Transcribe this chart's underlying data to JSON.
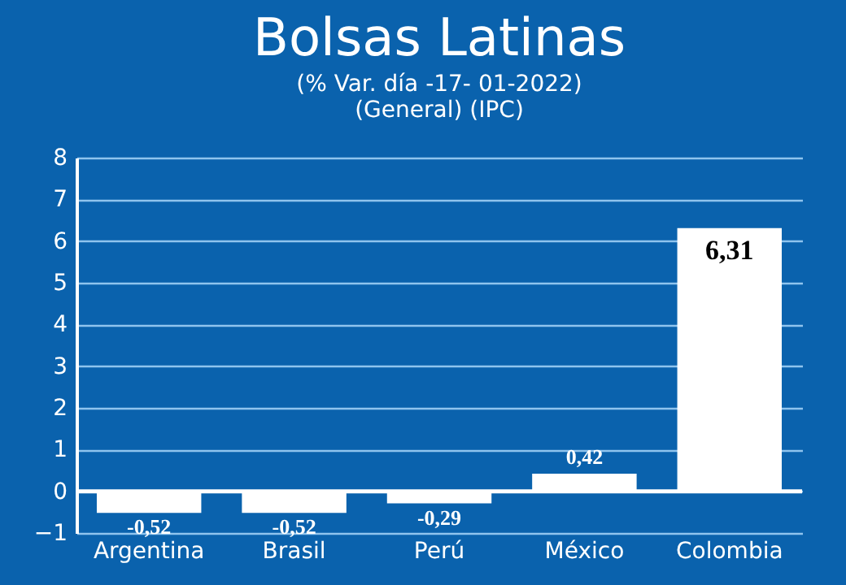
{
  "chart_data": {
    "type": "bar",
    "title": "Bolsas Latinas",
    "subtitle": "(% Var. día -17- 01-2022)",
    "categories": [
      "Argentina",
      "Brasil",
      "Perú",
      "México",
      "Colombia"
    ],
    "values": [
      -0.52,
      -0.52,
      -0.29,
      0.42,
      6.31
    ],
    "value_labels": [
      "-0,52",
      "-0,52",
      "-0,29",
      "0,42",
      "6,31"
    ],
    "color": "#ffffff",
    "annotations": [
      "(General)",
      "(IPC)"
    ],
    "ylim": [
      -1,
      8
    ],
    "yticks": [
      -1,
      0,
      1,
      2,
      3,
      4,
      5,
      6,
      7,
      8
    ],
    "grid": "y"
  }
}
